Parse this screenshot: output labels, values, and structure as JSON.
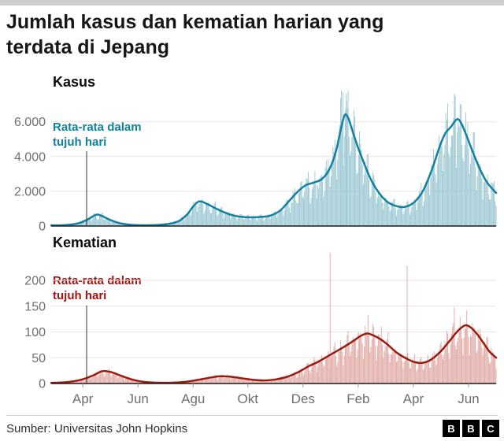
{
  "page": {
    "title_line1": "Jumlah kasus dan kematian harian yang",
    "title_line2": "terdata di Jepang",
    "source": "Sumber: Universitas John Hopkins",
    "bbc": [
      "B",
      "B",
      "C"
    ]
  },
  "x_axis": {
    "labels": [
      "Apr",
      "Jun",
      "Agu",
      "Okt",
      "Des",
      "Feb",
      "Apr",
      "Jun"
    ],
    "fractions": [
      0.071,
      0.195,
      0.319,
      0.442,
      0.566,
      0.69,
      0.814,
      0.938
    ]
  },
  "chart_data": [
    {
      "type": "bar",
      "title": "Kasus",
      "annotation": "Rata-rata dalam tujuh hari",
      "annotation_color": "#11809f",
      "bar_color": "#9cc8d3",
      "line_color": "#1380A1",
      "ylim": [
        0,
        7800
      ],
      "yticks": [
        0,
        2000,
        4000,
        6000
      ],
      "ytick_labels": [
        "0",
        "2.000",
        "4.000",
        "6.000"
      ],
      "series": [
        {
          "name": "Rata-rata dalam tujuh hari",
          "points": [
            [
              0.0,
              30
            ],
            [
              0.03,
              50
            ],
            [
              0.06,
              150
            ],
            [
              0.08,
              350
            ],
            [
              0.1,
              640
            ],
            [
              0.112,
              600
            ],
            [
              0.13,
              380
            ],
            [
              0.15,
              190
            ],
            [
              0.175,
              80
            ],
            [
              0.2,
              45
            ],
            [
              0.23,
              50
            ],
            [
              0.26,
              110
            ],
            [
              0.285,
              260
            ],
            [
              0.305,
              650
            ],
            [
              0.32,
              1150
            ],
            [
              0.333,
              1420
            ],
            [
              0.348,
              1300
            ],
            [
              0.365,
              1080
            ],
            [
              0.385,
              830
            ],
            [
              0.405,
              640
            ],
            [
              0.425,
              540
            ],
            [
              0.45,
              500
            ],
            [
              0.475,
              530
            ],
            [
              0.495,
              620
            ],
            [
              0.515,
              900
            ],
            [
              0.535,
              1450
            ],
            [
              0.555,
              2000
            ],
            [
              0.572,
              2350
            ],
            [
              0.59,
              2500
            ],
            [
              0.608,
              2700
            ],
            [
              0.625,
              3250
            ],
            [
              0.64,
              4300
            ],
            [
              0.652,
              5700
            ],
            [
              0.66,
              6400
            ],
            [
              0.668,
              6200
            ],
            [
              0.678,
              5400
            ],
            [
              0.69,
              4500
            ],
            [
              0.705,
              3500
            ],
            [
              0.72,
              2600
            ],
            [
              0.737,
              1900
            ],
            [
              0.755,
              1400
            ],
            [
              0.775,
              1150
            ],
            [
              0.795,
              1100
            ],
            [
              0.815,
              1350
            ],
            [
              0.835,
              2000
            ],
            [
              0.855,
              3200
            ],
            [
              0.872,
              4500
            ],
            [
              0.885,
              5300
            ],
            [
              0.898,
              5700
            ],
            [
              0.912,
              6150
            ],
            [
              0.922,
              5900
            ],
            [
              0.935,
              5100
            ],
            [
              0.95,
              4100
            ],
            [
              0.965,
              3200
            ],
            [
              0.98,
              2500
            ],
            [
              1.0,
              1900
            ]
          ]
        }
      ],
      "bar_model": {
        "num_bars": 470,
        "seed": 42,
        "week_pattern": [
          0.62,
          0.8,
          1.02,
          1.1,
          1.16,
          1.22,
          0.92
        ],
        "random_base": 0.8,
        "random_span": 0.34,
        "spikes": [
          [
            0.656,
            7700
          ],
          [
            0.664,
            7200
          ],
          [
            0.908,
            7500
          ]
        ]
      }
    },
    {
      "type": "bar",
      "title": "Kematian",
      "annotation": "Rata-rata dalam tujuh hari",
      "annotation_color": "#a6120e",
      "bar_color": "#e2aba6",
      "line_color": "#9e1a10",
      "ylim": [
        0,
        255
      ],
      "yticks": [
        0,
        50,
        100,
        150,
        200
      ],
      "ytick_labels": [
        "0",
        "50",
        "100",
        "150",
        "200"
      ],
      "series": [
        {
          "name": "Rata-rata dalam tujuh hari",
          "points": [
            [
              0.0,
              1
            ],
            [
              0.04,
              3
            ],
            [
              0.07,
              8
            ],
            [
              0.095,
              16
            ],
            [
              0.115,
              24
            ],
            [
              0.135,
              22
            ],
            [
              0.16,
              14
            ],
            [
              0.185,
              7
            ],
            [
              0.21,
              3
            ],
            [
              0.24,
              1.5
            ],
            [
              0.27,
              1.5
            ],
            [
              0.3,
              3
            ],
            [
              0.33,
              7
            ],
            [
              0.355,
              11
            ],
            [
              0.38,
              14
            ],
            [
              0.405,
              13
            ],
            [
              0.43,
              10
            ],
            [
              0.455,
              7
            ],
            [
              0.48,
              6
            ],
            [
              0.505,
              8
            ],
            [
              0.53,
              13
            ],
            [
              0.555,
              22
            ],
            [
              0.58,
              34
            ],
            [
              0.6,
              42
            ],
            [
              0.62,
              52
            ],
            [
              0.64,
              62
            ],
            [
              0.66,
              72
            ],
            [
              0.68,
              83
            ],
            [
              0.695,
              92
            ],
            [
              0.71,
              97
            ],
            [
              0.722,
              94
            ],
            [
              0.74,
              86
            ],
            [
              0.758,
              74
            ],
            [
              0.775,
              61
            ],
            [
              0.795,
              50
            ],
            [
              0.815,
              42
            ],
            [
              0.835,
              40
            ],
            [
              0.855,
              47
            ],
            [
              0.875,
              62
            ],
            [
              0.893,
              80
            ],
            [
              0.908,
              96
            ],
            [
              0.92,
              107
            ],
            [
              0.932,
              113
            ],
            [
              0.944,
              108
            ],
            [
              0.958,
              95
            ],
            [
              0.972,
              78
            ],
            [
              0.985,
              62
            ],
            [
              1.0,
              50
            ]
          ]
        }
      ],
      "bar_model": {
        "num_bars": 470,
        "seed": 1337,
        "week_pattern": [
          0.62,
          0.8,
          1.02,
          1.1,
          1.16,
          1.22,
          0.92
        ],
        "random_base": 0.8,
        "random_span": 0.34,
        "spikes": [
          [
            0.627,
            253
          ],
          [
            0.8,
            228
          ],
          [
            0.906,
            148
          ]
        ]
      }
    }
  ]
}
